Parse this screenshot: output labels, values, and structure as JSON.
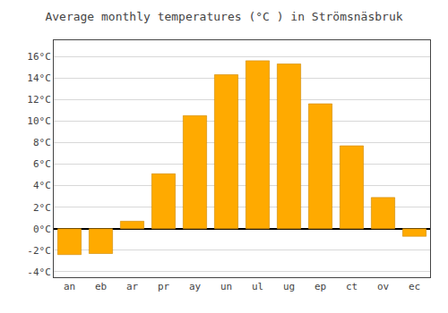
{
  "chart_data": {
    "type": "bar",
    "title": "Average monthly temperatures (°C ) in Strömsnäsbruk",
    "categories": [
      "an",
      "eb",
      "ar",
      "pr",
      "ay",
      "un",
      "ul",
      "ug",
      "ep",
      "ct",
      "ov",
      "ec"
    ],
    "values": [
      -2.4,
      -2.3,
      0.7,
      5.1,
      10.5,
      14.3,
      15.6,
      15.3,
      11.6,
      7.7,
      2.9,
      -0.7
    ],
    "color": "#FFAA00",
    "ylim": [
      -4.5,
      17.5
    ],
    "yticks": [
      {
        "value": -4,
        "label": "-4°C"
      },
      {
        "value": -2,
        "label": "-2°C"
      },
      {
        "value": 0,
        "label": "0°C"
      },
      {
        "value": 2,
        "label": "2°C"
      },
      {
        "value": 4,
        "label": "4°C"
      },
      {
        "value": 6,
        "label": "6°C"
      },
      {
        "value": 8,
        "label": "8°C"
      },
      {
        "value": 10,
        "label": "10°C"
      },
      {
        "value": 12,
        "label": "12°C"
      },
      {
        "value": 14,
        "label": "14°C"
      },
      {
        "value": 16,
        "label": "16°C"
      }
    ],
    "grid": true
  }
}
